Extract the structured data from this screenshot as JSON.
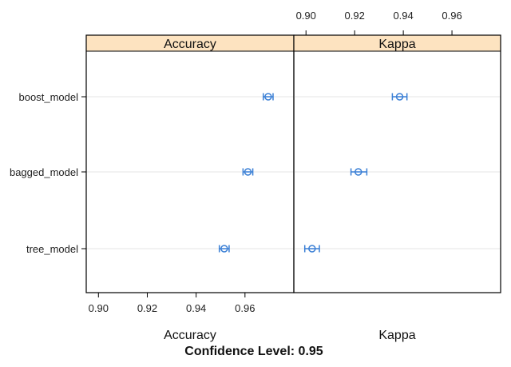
{
  "chart_data": {
    "type": "dotplot",
    "title": "Confidence Level: 0.95",
    "categories": [
      "boost_model",
      "bagged_model",
      "tree_model"
    ],
    "panels": [
      {
        "name": "Accuracy",
        "xlabel": "Accuracy",
        "xlim": [
          0.895,
          0.98
        ],
        "ticks": [
          0.9,
          0.92,
          0.94,
          0.96
        ],
        "tick_labels": [
          "0.90",
          "0.92",
          "0.94",
          "0.96"
        ],
        "tick_side": "bottom",
        "points": [
          {
            "model": "boost_model",
            "mean": 0.9695,
            "lower": 0.9675,
            "upper": 0.9715
          },
          {
            "model": "bagged_model",
            "mean": 0.9612,
            "lower": 0.9592,
            "upper": 0.9632
          },
          {
            "model": "tree_model",
            "mean": 0.9515,
            "lower": 0.9495,
            "upper": 0.9535
          }
        ]
      },
      {
        "name": "Kappa",
        "xlabel": "Kappa",
        "xlim": [
          0.895,
          0.98
        ],
        "ticks": [
          0.9,
          0.92,
          0.94,
          0.96
        ],
        "tick_labels": [
          "0.90",
          "0.92",
          "0.94",
          "0.96"
        ],
        "tick_side": "top",
        "points": [
          {
            "model": "boost_model",
            "mean": 0.9385,
            "lower": 0.9355,
            "upper": 0.9415
          },
          {
            "model": "bagged_model",
            "mean": 0.9215,
            "lower": 0.9185,
            "upper": 0.925
          },
          {
            "model": "tree_model",
            "mean": 0.9025,
            "lower": 0.8995,
            "upper": 0.9055
          }
        ]
      }
    ],
    "colors": {
      "point": "#3a7fd5",
      "strip": "#fde3c0",
      "gridline": "#e6e6e6",
      "frame": "#000000"
    }
  }
}
